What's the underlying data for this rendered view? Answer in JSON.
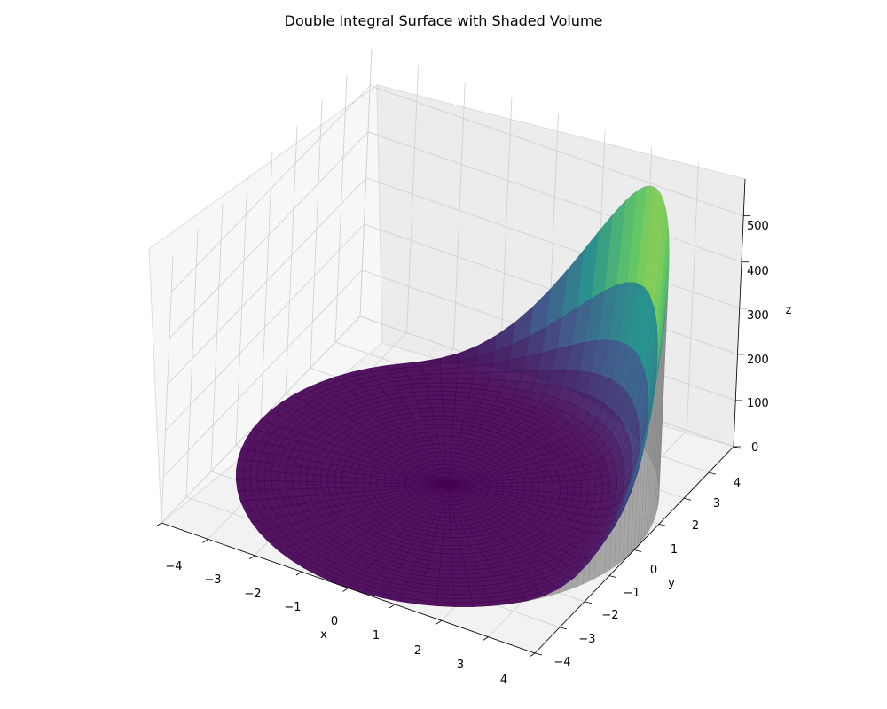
{
  "chart_data": {
    "type": "surface3d",
    "title": "Double Integral Surface with Shaded Volume",
    "xlabel": "x",
    "ylabel": "y",
    "zlabel": "z",
    "xlim": [
      -4,
      4
    ],
    "ylim": [
      -4,
      4
    ],
    "zlim": [
      0,
      580
    ],
    "x_ticks": [
      "−4",
      "−3",
      "−2",
      "−1",
      "0",
      "1",
      "2",
      "3",
      "4"
    ],
    "y_ticks": [
      "−4",
      "−3",
      "−2",
      "−1",
      "0",
      "1",
      "2",
      "3",
      "4"
    ],
    "z_ticks": [
      "0",
      "100",
      "200",
      "300",
      "400",
      "500"
    ],
    "domain": "disk x² + y² ≤ 16",
    "surface_peak_z": 570,
    "colormap": "viridis",
    "volume_shade_color": "#888888",
    "grid": true
  }
}
